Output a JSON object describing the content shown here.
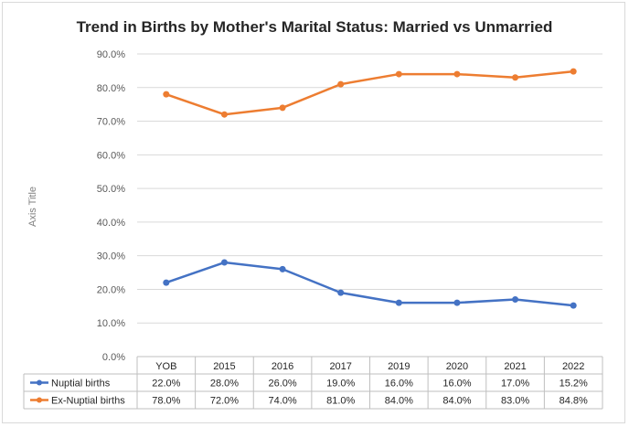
{
  "chart_data": {
    "type": "line",
    "title": "Trend in Births by Mother's Marital Status: Married vs Unmarried",
    "xlabel": "",
    "ylabel": "Axis Title",
    "categories": [
      "YOB",
      "2015",
      "2016",
      "2017",
      "2019",
      "2020",
      "2021",
      "2022"
    ],
    "ylim": [
      0,
      90
    ],
    "yticks": [
      "0.0%",
      "10.0%",
      "20.0%",
      "30.0%",
      "40.0%",
      "50.0%",
      "60.0%",
      "70.0%",
      "80.0%",
      "90.0%"
    ],
    "grid": true,
    "legend": "data-table",
    "series": [
      {
        "name": "Nuptial births",
        "color": "#4472c4",
        "values": [
          22.0,
          28.0,
          26.0,
          19.0,
          16.0,
          16.0,
          17.0,
          15.2
        ],
        "labels": [
          "22.0%",
          "28.0%",
          "26.0%",
          "19.0%",
          "16.0%",
          "16.0%",
          "17.0%",
          "15.2%"
        ]
      },
      {
        "name": "Ex-Nuptial births",
        "color": "#ed7d31",
        "values": [
          78.0,
          72.0,
          74.0,
          81.0,
          84.0,
          84.0,
          83.0,
          84.8
        ],
        "labels": [
          "78.0%",
          "72.0%",
          "74.0%",
          "81.0%",
          "84.0%",
          "84.0%",
          "83.0%",
          "84.8%"
        ]
      }
    ]
  }
}
